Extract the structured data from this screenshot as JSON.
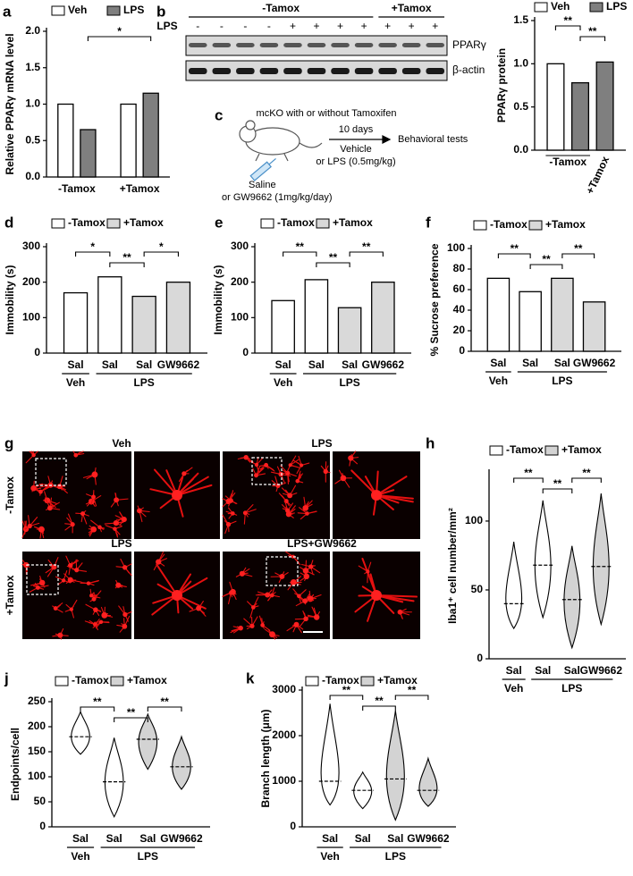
{
  "chart_data": [
    {
      "type": "bar",
      "panel": "a",
      "ylabel": "Relative PPARγ mRNA level",
      "categories": [
        "-Tamox",
        "+Tamox"
      ],
      "series": [
        {
          "name": "Veh",
          "color": "#ffffff",
          "values": [
            1.0,
            1.0
          ]
        },
        {
          "name": "LPS",
          "color": "#7f7f7f",
          "values": [
            0.65,
            1.15
          ]
        }
      ],
      "ylim": [
        0,
        2
      ],
      "yticks": [
        {
          "value": 0,
          "label": "0.0"
        },
        {
          "value": 0.5,
          "label": "0.5"
        },
        {
          "value": 1,
          "label": "1.0"
        },
        {
          "value": 1.5,
          "label": "1.5"
        },
        {
          "value": 2,
          "label": "2.0"
        }
      ],
      "significance": [
        "*"
      ]
    },
    {
      "type": "bar",
      "ylabel": "PPARγ protein",
      "categories": [
        "-Tamox",
        "+Tamox"
      ],
      "series": [
        {
          "name": "Veh",
          "color": "#ffffff",
          "values": [
            1.0,
            null
          ]
        },
        {
          "name": "LPS",
          "color": "#7f7f7f",
          "values": [
            0.78,
            1.02
          ]
        }
      ],
      "ylim": [
        0,
        1.5
      ],
      "yticks": [
        {
          "value": 0,
          "label": "0.0"
        },
        {
          "value": 0.5,
          "label": "0.5"
        },
        {
          "value": 1,
          "label": "1.0"
        },
        {
          "value": 1.5,
          "label": "1.5"
        }
      ],
      "significance": [
        "**",
        "**"
      ]
    },
    {
      "type": "bar",
      "panel": "d",
      "ylabel": "Immobility (s)",
      "categories": [
        "Sal",
        "Sal",
        "Sal",
        "GW9662"
      ],
      "group_labels": [
        "Veh",
        "LPS"
      ],
      "series": [
        {
          "name": "-Tamox",
          "color": "#ffffff",
          "values": [
            170,
            215,
            null,
            null
          ]
        },
        {
          "name": "+Tamox",
          "color": "#d9d9d9",
          "values": [
            null,
            null,
            160,
            200
          ]
        }
      ],
      "ylim": [
        0,
        300
      ],
      "yticks": [
        0,
        100,
        200,
        300
      ],
      "significance": [
        "*",
        "**",
        "*"
      ]
    },
    {
      "type": "bar",
      "panel": "e",
      "ylabel": "Immobility (s)",
      "categories": [
        "Sal",
        "Sal",
        "Sal",
        "GW9662"
      ],
      "group_labels": [
        "Veh",
        "LPS"
      ],
      "series": [
        {
          "name": "-Tamox",
          "color": "#ffffff",
          "values": [
            148,
            207,
            null,
            null
          ]
        },
        {
          "name": "+Tamox",
          "color": "#d9d9d9",
          "values": [
            null,
            null,
            128,
            200
          ]
        }
      ],
      "ylim": [
        0,
        300
      ],
      "yticks": [
        0,
        100,
        200,
        300
      ],
      "significance": [
        "**",
        "**",
        "**"
      ]
    },
    {
      "type": "bar",
      "panel": "f",
      "ylabel": "% Sucrose preference",
      "categories": [
        "Sal",
        "Sal",
        "Sal",
        "GW9662"
      ],
      "group_labels": [
        "Veh",
        "LPS"
      ],
      "series": [
        {
          "name": "-Tamox",
          "color": "#ffffff",
          "values": [
            71,
            58,
            null,
            null
          ]
        },
        {
          "name": "+Tamox",
          "color": "#d9d9d9",
          "values": [
            null,
            null,
            71,
            48
          ]
        }
      ],
      "ylim": [
        0,
        100
      ],
      "yticks": [
        0,
        20,
        40,
        60,
        80,
        100
      ],
      "significance": [
        "**",
        "**",
        "**"
      ]
    },
    {
      "type": "violin",
      "panel": "h",
      "ylabel": "Iba1⁺ cell number/mm²",
      "categories": [
        "Sal",
        "Sal",
        "Sal",
        "GW9662"
      ],
      "group_labels": [
        "Veh",
        "LPS"
      ],
      "series": [
        {
          "name": "-Tamox",
          "color": "#ffffff",
          "values": [
            40,
            68,
            null,
            null
          ],
          "min": [
            22,
            30,
            null,
            null
          ],
          "max": [
            85,
            115,
            null,
            null
          ]
        },
        {
          "name": "+Tamox",
          "color": "#d3d3d3",
          "values": [
            null,
            null,
            43,
            67
          ],
          "min": [
            null,
            null,
            8,
            25
          ],
          "max": [
            null,
            null,
            82,
            120
          ]
        }
      ],
      "ylim": [
        0,
        135
      ],
      "yticks": [
        0,
        50,
        100
      ],
      "significance": [
        "**",
        "**",
        "**"
      ]
    },
    {
      "type": "violin",
      "panel": "j",
      "ylabel": "Endpoints/cell",
      "categories": [
        "Sal",
        "Sal",
        "Sal",
        "GW9662"
      ],
      "group_labels": [
        "Veh",
        "LPS"
      ],
      "series": [
        {
          "name": "-Tamox",
          "color": "#ffffff",
          "values": [
            180,
            90,
            null,
            null
          ],
          "min": [
            145,
            20,
            null,
            null
          ],
          "max": [
            230,
            178,
            null,
            null
          ]
        },
        {
          "name": "+Tamox",
          "color": "#d3d3d3",
          "values": [
            null,
            null,
            175,
            120
          ],
          "min": [
            null,
            null,
            115,
            75
          ],
          "max": [
            null,
            null,
            225,
            180
          ]
        }
      ],
      "ylim": [
        0,
        250
      ],
      "yticks": [
        0,
        50,
        100,
        150,
        200,
        250
      ],
      "significance": [
        "**",
        "**",
        "**"
      ]
    },
    {
      "type": "violin",
      "panel": "k",
      "ylabel": "Branch length (μm)",
      "categories": [
        "Sal",
        "Sal",
        "Sal",
        "GW9662"
      ],
      "group_labels": [
        "Veh",
        "LPS"
      ],
      "series": [
        {
          "name": "-Tamox",
          "color": "#ffffff",
          "values": [
            1000,
            800,
            null,
            null
          ],
          "min": [
            480,
            400,
            null,
            null
          ],
          "max": [
            2700,
            1200,
            null,
            null
          ]
        },
        {
          "name": "+Tamox",
          "color": "#d3d3d3",
          "values": [
            null,
            null,
            1050,
            800
          ],
          "min": [
            null,
            null,
            150,
            450
          ],
          "max": [
            null,
            null,
            2550,
            1500
          ]
        }
      ],
      "ylim": [
        0,
        3000
      ],
      "yticks": [
        0,
        1000,
        2000,
        3000
      ],
      "significance": [
        "**",
        "**",
        "**"
      ]
    }
  ],
  "blot": {
    "panel": "b",
    "groups": [
      "-Tamox",
      "+Tamox"
    ],
    "lps_label": "LPS",
    "lps": [
      "-",
      "-",
      "-",
      "-",
      "+",
      "+",
      "+",
      "+",
      "+",
      "+",
      "+"
    ],
    "rows": [
      "PPARγ",
      "β-actin"
    ]
  },
  "schematic": {
    "panel": "c",
    "title": "mcKO with or without Tamoxifen",
    "duration": "10 days",
    "treatment": [
      "Vehicle",
      "or LPS (0.5mg/kg)"
    ],
    "outcome": "Behavioral tests",
    "injection": [
      "Saline",
      "or GW9662 (1mg/kg/day)"
    ]
  },
  "micrographs": {
    "panel": "g",
    "rows": [
      {
        "label": "-Tamox",
        "titles": [
          "Veh",
          "LPS"
        ]
      },
      {
        "label": "+Tamox",
        "titles": [
          "LPS",
          "LPS+GW9662"
        ]
      }
    ]
  }
}
